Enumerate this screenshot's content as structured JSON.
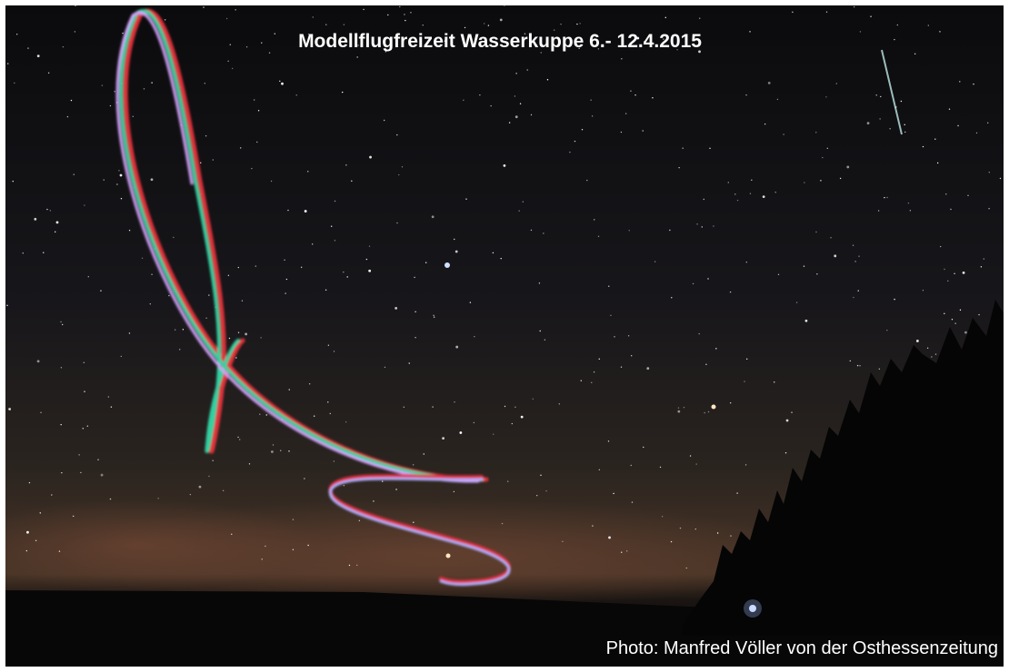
{
  "title": "Modellflugfreizeit Wasserkuppe 6.- 12.4.2015",
  "credit": "Photo: Manfred Völler von der Osthessenzeitung"
}
